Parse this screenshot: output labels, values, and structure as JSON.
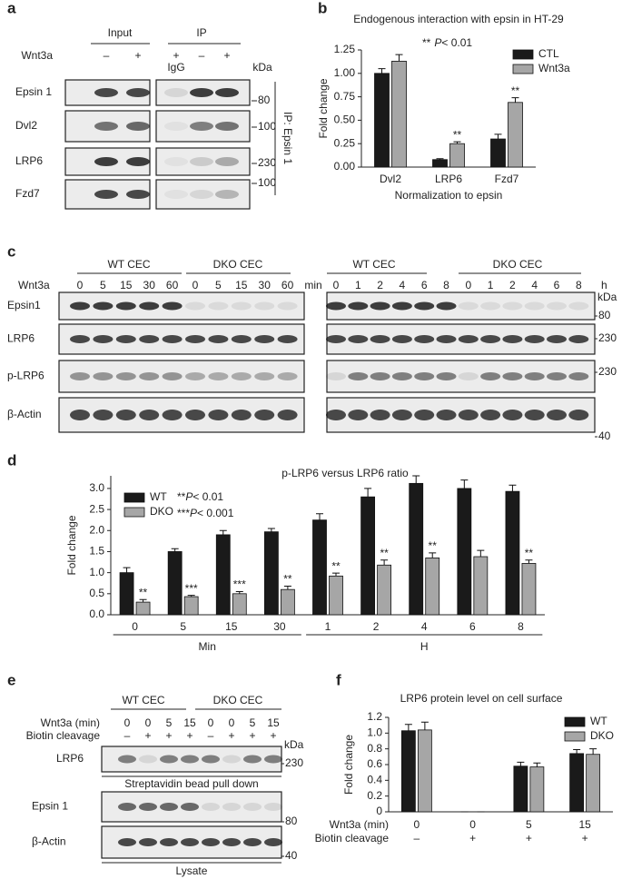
{
  "blot_a": {
    "label": "a",
    "groups": [
      "Input",
      "IP"
    ],
    "treatment": "Wnt3a",
    "signs": [
      "–",
      "+",
      "+",
      "–",
      "+"
    ],
    "igg": "IgG",
    "rows": [
      "Epsin 1",
      "Dvl2",
      "LRP6",
      "Fzd7"
    ],
    "kda": "kDa",
    "markers": [
      80,
      100,
      230,
      100
    ],
    "ip_label": "IP: Epsin 1"
  },
  "blot_c": {
    "label": "c",
    "groups": [
      "WT CEC",
      "DKO CEC",
      "WT CEC",
      "DKO CEC"
    ],
    "treatment": "Wnt3a",
    "times_min": [
      0,
      5,
      15,
      30,
      60,
      0,
      5,
      15,
      30,
      60
    ],
    "unit_min": "min",
    "times_h": [
      0,
      1,
      2,
      4,
      6,
      8,
      0,
      1,
      2,
      4,
      6,
      8
    ],
    "unit_h": "h",
    "rows": [
      "Epsin1",
      "LRP6",
      "p-LRP6",
      "β-Actin"
    ],
    "kda": "kDa",
    "markers": [
      80,
      230,
      230,
      40
    ]
  },
  "blot_e": {
    "label": "e",
    "groups": [
      "WT CEC",
      "DKO CEC"
    ],
    "row_headers": [
      "Wnt3a (min)",
      "Biotin cleavage"
    ],
    "times": [
      0,
      0,
      5,
      15,
      0,
      0,
      5,
      15
    ],
    "signs": [
      "–",
      "+",
      "+",
      "+",
      "–",
      "+",
      "+",
      "+"
    ],
    "kda": "kDa",
    "blots": [
      "LRP6",
      "Epsin 1",
      "β-Actin"
    ],
    "markers": [
      230,
      80,
      40
    ],
    "captions": [
      "Streptavidin bead pull down",
      "Lysate"
    ]
  },
  "chart_data": [
    {
      "type": "bar",
      "panel_label": "b",
      "title": "Endogenous interaction with epsin in HT-29",
      "annotations": [
        {
          "stars": "**",
          "p": "P",
          "text": "< 0.01"
        }
      ],
      "y_label": "Fold change",
      "x_label": "Normalization to epsin",
      "categories": [
        "Dvl2",
        "LRP6",
        "Fzd7"
      ],
      "legend": "upper right",
      "series": [
        {
          "name": "CTL",
          "color": "#1a1a1a",
          "values": [
            1.0,
            0.08,
            0.3
          ],
          "errors": [
            0.05,
            0.01,
            0.05
          ],
          "significance": [
            null,
            null,
            null
          ]
        },
        {
          "name": "Wnt3a",
          "color": "#a6a6a6",
          "values": [
            1.13,
            0.25,
            0.69
          ],
          "errors": [
            0.07,
            0.02,
            0.05
          ],
          "significance": [
            null,
            "**",
            "**"
          ]
        }
      ],
      "ylim": [
        0,
        1.25
      ],
      "yticks": [
        {
          "value": 0,
          "label": "0.00"
        },
        0.25,
        {
          "value": 0.5,
          "label": "0.50"
        },
        0.75,
        {
          "value": 1,
          "label": "1.00"
        },
        1.25
      ]
    },
    {
      "type": "bar",
      "panel_label": "d",
      "title": "p-LRP6 versus LRP6 ratio",
      "annotations": [
        {
          "stars": "**",
          "p": "P",
          "text": "< 0.01"
        },
        {
          "stars": "***",
          "p": "P",
          "text": "< 0.001"
        }
      ],
      "y_label": "Fold change",
      "categories": [
        "0",
        "5",
        "15",
        "30",
        "1",
        "2",
        "4",
        "6",
        "8"
      ],
      "group_labels": [
        "Min",
        "H"
      ],
      "legend": "upper left",
      "series": [
        {
          "name": "WT",
          "color": "#1a1a1a",
          "values": [
            1.0,
            1.5,
            1.9,
            1.97,
            2.25,
            2.8,
            3.12,
            3.0,
            2.93
          ],
          "errors": [
            0.12,
            0.07,
            0.1,
            0.08,
            0.15,
            0.2,
            0.18,
            0.2,
            0.15
          ],
          "significance": [
            null,
            null,
            null,
            null,
            null,
            null,
            null,
            null,
            null
          ]
        },
        {
          "name": "DKO",
          "color": "#a6a6a6",
          "values": [
            0.3,
            0.43,
            0.5,
            0.6,
            0.92,
            1.18,
            1.35,
            1.38,
            1.22
          ],
          "errors": [
            0.06,
            0.03,
            0.05,
            0.08,
            0.07,
            0.12,
            0.12,
            0.15,
            0.08
          ],
          "significance": [
            "**",
            "***",
            "***",
            "**",
            "**",
            "**",
            "**",
            null,
            "**"
          ]
        }
      ],
      "ylim": [
        0,
        3.3
      ],
      "yticks": [
        {
          "value": 0,
          "label": "0.0"
        },
        0.5,
        {
          "value": 1,
          "label": "1.0"
        },
        1.5,
        {
          "value": 2,
          "label": "2.0"
        },
        2.5,
        {
          "value": 3,
          "label": "3.0"
        }
      ]
    },
    {
      "type": "bar",
      "panel_label": "f",
      "title": "LRP6 protein level on cell surface",
      "y_label": "Fold change",
      "row_labels": [
        "Wnt3a (min)",
        "Biotin cleavage"
      ],
      "categories": [
        "0",
        "0",
        "5",
        "15"
      ],
      "categories_2": [
        "–",
        "+",
        "+",
        "+"
      ],
      "legend": "upper right",
      "series": [
        {
          "name": "WT",
          "color": "#1a1a1a",
          "values": [
            1.03,
            0,
            0.58,
            0.74
          ],
          "errors": [
            0.08,
            0,
            0.05,
            0.05
          ]
        },
        {
          "name": "DKO",
          "color": "#a6a6a6",
          "values": [
            1.04,
            0,
            0.57,
            0.73
          ],
          "errors": [
            0.1,
            0,
            0.05,
            0.07
          ]
        }
      ],
      "ylim": [
        0,
        1.2
      ],
      "yticks": [
        0,
        0.2,
        0.4,
        0.6,
        0.8,
        {
          "value": 1,
          "label": "1.0"
        },
        1.2
      ]
    }
  ]
}
